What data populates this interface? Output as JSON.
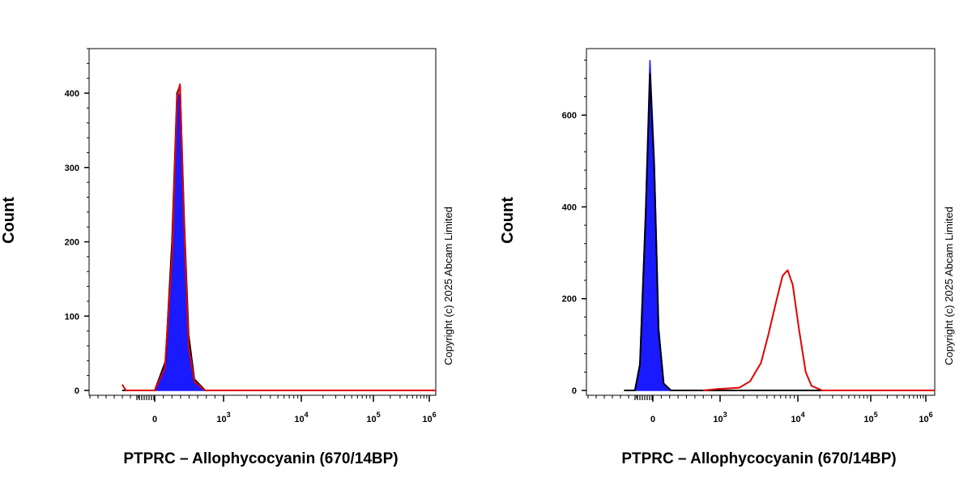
{
  "colors": {
    "isotype_fill": "#1a1aff",
    "unstained": "#000000",
    "stained": "#e00000",
    "axis": "#000000"
  },
  "chart_data": [
    {
      "type": "line",
      "xscale": "biexponential",
      "xlabel": "PTPRC – Allophycocyanin (670/14BP)",
      "ylabel": "Count",
      "copyright": "Copyright (c) 2025 Abcam Limited",
      "ylim": [
        0,
        460
      ],
      "yticks": [
        0,
        100,
        200,
        300,
        400
      ],
      "ytick_labels": [
        "0",
        "100",
        "200",
        "300",
        "400"
      ],
      "xticks": [
        {
          "label": "0",
          "exp": ""
        },
        {
          "label": "10",
          "exp": "3"
        },
        {
          "label": "10",
          "exp": "4"
        },
        {
          "label": "10",
          "exp": "5"
        },
        {
          "label": "10",
          "exp": "6"
        }
      ],
      "series": [
        {
          "role": "isotype",
          "color": "#1a1aff",
          "fill": true,
          "points": [
            [
              -0.45,
              0
            ],
            [
              0.0,
              0
            ],
            [
              0.15,
              40
            ],
            [
              0.24,
              200
            ],
            [
              0.31,
              395
            ],
            [
              0.35,
              400
            ],
            [
              0.41,
              220
            ],
            [
              0.47,
              70
            ],
            [
              0.55,
              12
            ],
            [
              0.7,
              0
            ],
            [
              4.4,
              0
            ]
          ]
        },
        {
          "role": "unstained",
          "color": "#000000",
          "fill": false,
          "points": [
            [
              -0.45,
              0
            ],
            [
              0.0,
              0
            ],
            [
              0.15,
              38
            ],
            [
              0.24,
              200
            ],
            [
              0.31,
              400
            ],
            [
              0.35,
              410
            ],
            [
              0.41,
              225
            ],
            [
              0.47,
              75
            ],
            [
              0.55,
              15
            ],
            [
              0.7,
              0
            ],
            [
              4.4,
              0
            ]
          ]
        },
        {
          "role": "stained",
          "color": "#e00000",
          "fill": false,
          "points": [
            [
              -0.45,
              8
            ],
            [
              -0.4,
              0
            ],
            [
              0.0,
              0
            ],
            [
              0.14,
              30
            ],
            [
              0.24,
              180
            ],
            [
              0.31,
              395
            ],
            [
              0.35,
              412
            ],
            [
              0.41,
              215
            ],
            [
              0.47,
              60
            ],
            [
              0.55,
              12
            ],
            [
              0.7,
              0
            ],
            [
              4.4,
              0
            ]
          ]
        }
      ]
    },
    {
      "type": "line",
      "xscale": "biexponential",
      "xlabel": "PTPRC – Allophycocyanin (670/14BP)",
      "ylabel": "Count",
      "copyright": "Copyright (c) 2025 Abcam Limited",
      "ylim": [
        0,
        745
      ],
      "yticks": [
        0,
        200,
        400,
        600
      ],
      "ytick_labels": [
        "0",
        "200",
        "400",
        "600"
      ],
      "xticks": [
        {
          "label": "0",
          "exp": ""
        },
        {
          "label": "10",
          "exp": "3"
        },
        {
          "label": "10",
          "exp": "4"
        },
        {
          "label": "10",
          "exp": "5"
        },
        {
          "label": "10",
          "exp": "6"
        }
      ],
      "series": [
        {
          "role": "isotype",
          "color": "#1a1aff",
          "fill": true,
          "points": [
            [
              -0.4,
              0
            ],
            [
              -0.25,
              0
            ],
            [
              -0.18,
              60
            ],
            [
              -0.1,
              400
            ],
            [
              -0.04,
              720
            ],
            [
              0.02,
              500
            ],
            [
              0.08,
              140
            ],
            [
              0.15,
              15
            ],
            [
              0.25,
              0
            ],
            [
              4.4,
              0
            ]
          ]
        },
        {
          "role": "unstained",
          "color": "#000000",
          "fill": false,
          "points": [
            [
              -0.4,
              0
            ],
            [
              -0.25,
              0
            ],
            [
              -0.18,
              55
            ],
            [
              -0.1,
              380
            ],
            [
              -0.04,
              690
            ],
            [
              0.02,
              480
            ],
            [
              0.08,
              130
            ],
            [
              0.15,
              15
            ],
            [
              0.25,
              0
            ],
            [
              4.4,
              0
            ]
          ]
        },
        {
          "role": "stained",
          "color": "#e00000",
          "fill": false,
          "points": [
            [
              0.7,
              0
            ],
            [
              0.9,
              3
            ],
            [
              1.2,
              6
            ],
            [
              1.35,
              20
            ],
            [
              1.5,
              60
            ],
            [
              1.6,
              120
            ],
            [
              1.72,
              200
            ],
            [
              1.8,
              250
            ],
            [
              1.87,
              262
            ],
            [
              1.94,
              230
            ],
            [
              2.03,
              130
            ],
            [
              2.12,
              40
            ],
            [
              2.2,
              10
            ],
            [
              2.35,
              0
            ],
            [
              4.4,
              0
            ]
          ]
        }
      ]
    }
  ]
}
